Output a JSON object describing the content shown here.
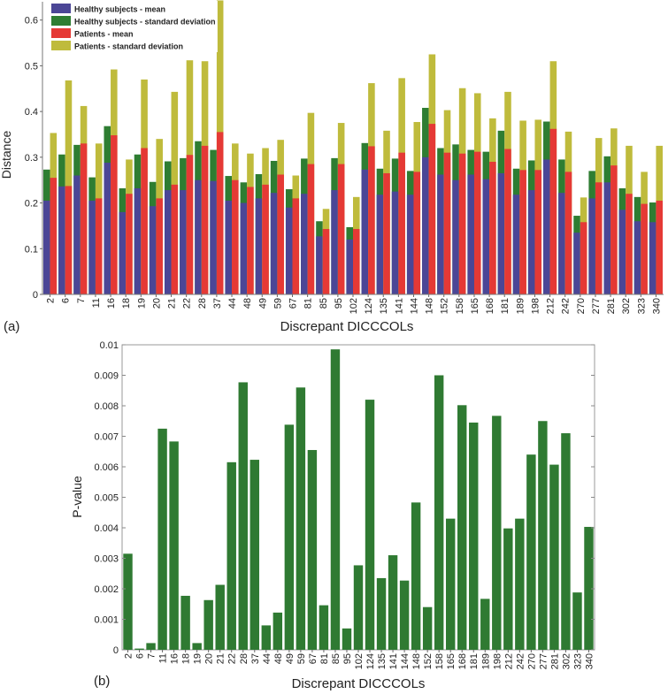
{
  "panel_labels": [
    "(a)",
    "(b)"
  ],
  "chart_data": [
    {
      "type": "bar",
      "variant": "overlaid-mean-sd",
      "panel": "(a)",
      "title": "",
      "xlabel": "Discrepant DICCCOLs",
      "ylabel": "Distance",
      "ylim": [
        0,
        0.64
      ],
      "yticks": [
        0,
        0.1,
        0.2,
        0.3,
        0.4,
        0.5,
        0.6
      ],
      "ytick_labels": [
        "0",
        "0.1",
        "0.2",
        "0.3",
        "0.4",
        "0.5",
        "0.6"
      ],
      "grid": false,
      "legend_position": "top-left",
      "legend": [
        {
          "label": "Healthy subjects - mean",
          "color": "#4b4696"
        },
        {
          "label": "Healthy subjects - standard deviation",
          "color": "#2e7d32"
        },
        {
          "label": "Patients - mean",
          "color": "#e53935"
        },
        {
          "label": "Patients - standard deviation",
          "color": "#bfbb3c"
        }
      ],
      "categories": [
        "2",
        "6",
        "7",
        "11",
        "16",
        "18",
        "19",
        "20",
        "21",
        "22",
        "28",
        "37",
        "44",
        "48",
        "49",
        "59",
        "67",
        "81",
        "85",
        "95",
        "102",
        "124",
        "135",
        "141",
        "144",
        "148",
        "152",
        "158",
        "165",
        "168",
        "181",
        "189",
        "198",
        "212",
        "242",
        "270",
        "277",
        "281",
        "302",
        "323",
        "340"
      ],
      "series": [
        {
          "name": "Healthy subjects - mean",
          "values": [
            0.205,
            0.236,
            0.26,
            0.205,
            0.288,
            0.18,
            0.232,
            0.193,
            0.228,
            0.228,
            0.25,
            0.248,
            0.205,
            0.2,
            0.21,
            0.222,
            0.19,
            0.22,
            0.127,
            0.228,
            0.12,
            0.273,
            0.218,
            0.225,
            0.218,
            0.3,
            0.262,
            0.25,
            0.262,
            0.252,
            0.265,
            0.218,
            0.228,
            0.295,
            0.222,
            0.135,
            0.21,
            0.245,
            0.185,
            0.16,
            0.158
          ]
        },
        {
          "name": "Healthy subjects - standard deviation",
          "values": [
            0.273,
            0.306,
            0.327,
            0.256,
            0.368,
            0.232,
            0.306,
            0.246,
            0.291,
            0.298,
            0.335,
            0.316,
            0.259,
            0.245,
            0.263,
            0.292,
            0.23,
            0.297,
            0.16,
            0.298,
            0.147,
            0.331,
            0.275,
            0.297,
            0.27,
            0.408,
            0.32,
            0.328,
            0.316,
            0.312,
            0.358,
            0.275,
            0.293,
            0.378,
            0.295,
            0.172,
            0.27,
            0.302,
            0.232,
            0.213,
            0.201
          ]
        },
        {
          "name": "Patients - mean",
          "values": [
            0.255,
            0.237,
            0.33,
            0.21,
            0.348,
            0.22,
            0.32,
            0.21,
            0.24,
            0.305,
            0.325,
            0.355,
            0.25,
            0.235,
            0.24,
            0.262,
            0.21,
            0.285,
            0.143,
            0.285,
            0.143,
            0.324,
            0.265,
            0.31,
            0.268,
            0.373,
            0.31,
            0.308,
            0.312,
            0.29,
            0.318,
            0.272,
            0.272,
            0.362,
            0.268,
            0.158,
            0.245,
            0.282,
            0.22,
            0.198,
            0.205
          ]
        },
        {
          "name": "Patients - standard deviation",
          "values": [
            0.353,
            0.468,
            0.412,
            0.33,
            0.492,
            0.295,
            0.47,
            0.34,
            0.443,
            0.512,
            0.51,
            0.643,
            0.33,
            0.308,
            0.32,
            0.338,
            0.26,
            0.397,
            0.187,
            0.375,
            0.213,
            0.462,
            0.358,
            0.473,
            0.377,
            0.525,
            0.403,
            0.451,
            0.44,
            0.385,
            0.443,
            0.38,
            0.382,
            0.51,
            0.356,
            0.212,
            0.342,
            0.363,
            0.325,
            0.268,
            0.325
          ]
        }
      ]
    },
    {
      "type": "bar",
      "panel": "(b)",
      "title": "",
      "xlabel": "Discrepant DICCCOLs",
      "ylabel": "P-value",
      "ylim": [
        0,
        0.01
      ],
      "yticks": [
        0,
        0.001,
        0.002,
        0.003,
        0.004,
        0.005,
        0.006,
        0.007,
        0.008,
        0.009,
        0.01
      ],
      "ytick_labels": [
        "0",
        "0.001",
        "0.002",
        "0.003",
        "0.004",
        "0.005",
        "0.006",
        "0.007",
        "0.008",
        "0.009",
        "0.01"
      ],
      "grid": false,
      "color": "#2f7a32",
      "categories": [
        "2",
        "6",
        "7",
        "11",
        "16",
        "18",
        "19",
        "20",
        "21",
        "22",
        "28",
        "37",
        "44",
        "48",
        "49",
        "59",
        "67",
        "81",
        "85",
        "95",
        "102",
        "124",
        "135",
        "141",
        "144",
        "148",
        "152",
        "158",
        "165",
        "168",
        "181",
        "189",
        "198",
        "212",
        "242",
        "270",
        "277",
        "281",
        "302",
        "323",
        "340"
      ],
      "values": [
        0.00315,
        4e-05,
        0.00022,
        0.00725,
        0.00683,
        0.00177,
        0.00022,
        0.00163,
        0.00213,
        0.00615,
        0.00877,
        0.00623,
        0.0008,
        0.00122,
        0.00738,
        0.0086,
        0.00655,
        0.00146,
        0.00985,
        0.0007,
        0.00277,
        0.0082,
        0.00235,
        0.0031,
        0.00227,
        0.00483,
        0.0014,
        0.009,
        0.0043,
        0.00802,
        0.00745,
        0.00167,
        0.00767,
        0.00398,
        0.0043,
        0.0064,
        0.0075,
        0.00607,
        0.0071,
        0.00188,
        0.00403
      ]
    }
  ]
}
